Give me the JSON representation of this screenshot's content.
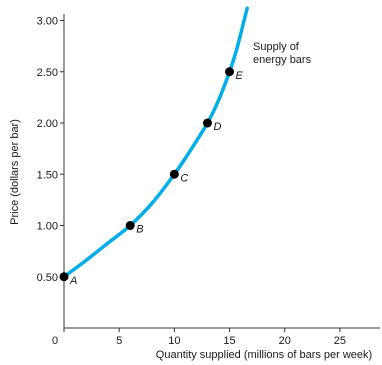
{
  "chart_data": {
    "type": "line",
    "xlabel": "Quantity supplied (millions of bars per week)",
    "ylabel": "Price (dollars per bar)",
    "xlim": [
      0,
      28
    ],
    "ylim": [
      0,
      3.2
    ],
    "x_ticks": [
      0,
      5,
      10,
      15,
      20,
      25
    ],
    "x_tick_labels": [
      "0",
      "5",
      "10",
      "15",
      "20",
      "25"
    ],
    "y_ticks": [
      0.5,
      1.0,
      1.5,
      2.0,
      2.5,
      3.0
    ],
    "y_tick_labels": [
      "0.50",
      "1.00",
      "1.50",
      "2.00",
      "2.50",
      "3.00"
    ],
    "grid": false,
    "curve_color": "#00aee8",
    "point_color": "#000000",
    "series": [
      {
        "name": "Supply of energy bars",
        "label_lines": [
          "Supply of",
          "energy bars"
        ],
        "curve": [
          {
            "x": 0,
            "y": 0.5
          },
          {
            "x": 2,
            "y": 0.66
          },
          {
            "x": 4,
            "y": 0.83
          },
          {
            "x": 6,
            "y": 1.0
          },
          {
            "x": 8,
            "y": 1.22
          },
          {
            "x": 10,
            "y": 1.5
          },
          {
            "x": 11.5,
            "y": 1.74
          },
          {
            "x": 13,
            "y": 2.0
          },
          {
            "x": 14,
            "y": 2.22
          },
          {
            "x": 15,
            "y": 2.5
          },
          {
            "x": 15.6,
            "y": 2.7
          },
          {
            "x": 16.2,
            "y": 2.95
          },
          {
            "x": 16.6,
            "y": 3.12
          }
        ],
        "points": [
          {
            "label": "A",
            "x": 0,
            "y": 0.5
          },
          {
            "label": "B",
            "x": 6,
            "y": 1.0
          },
          {
            "label": "C",
            "x": 10,
            "y": 1.5
          },
          {
            "label": "D",
            "x": 13,
            "y": 2.0
          },
          {
            "label": "E",
            "x": 15,
            "y": 2.5
          }
        ]
      }
    ]
  }
}
